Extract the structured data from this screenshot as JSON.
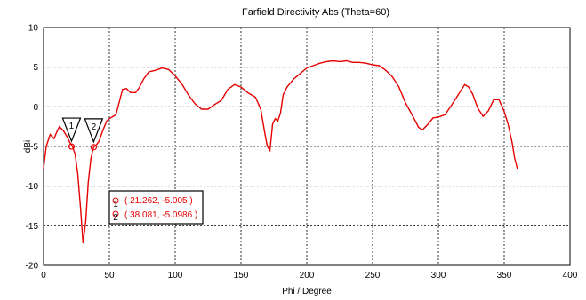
{
  "chart_data": {
    "type": "line",
    "title": "Farfield Directivity Abs (Theta=60)",
    "xlabel": "Phi / Degree",
    "ylabel": "dBi",
    "xlim": [
      0,
      400
    ],
    "ylim": [
      -20,
      10
    ],
    "xticks": [
      "0",
      "50",
      "100",
      "150",
      "200",
      "250",
      "300",
      "350",
      "400"
    ],
    "yticks": [
      "10",
      "5",
      "0",
      "-5",
      "-10",
      "-15",
      "-20"
    ],
    "grid": true,
    "line_color": "#e60000",
    "series": [
      {
        "x": [
          0,
          2,
          5,
          8,
          10,
          12,
          15,
          18,
          20,
          22,
          24,
          26,
          28,
          30,
          32,
          34,
          36,
          38,
          40,
          42,
          45,
          48,
          50,
          55,
          60,
          63,
          66,
          70,
          73,
          76,
          80,
          85,
          90,
          95,
          100,
          105,
          110,
          115,
          120,
          125,
          130,
          135,
          140,
          145,
          150,
          155,
          158,
          161,
          165,
          168,
          170,
          172,
          174,
          176,
          178,
          180,
          182,
          185,
          190,
          195,
          200,
          205,
          210,
          215,
          220,
          225,
          230,
          235,
          240,
          245,
          250,
          255,
          260,
          265,
          270,
          275,
          280,
          285,
          288,
          292,
          296,
          300,
          305,
          310,
          315,
          320,
          323,
          326,
          330,
          334,
          338,
          342,
          346,
          350,
          353,
          356,
          358,
          360
        ],
        "y": [
          -7.8,
          -5.0,
          -3.5,
          -4.0,
          -3.2,
          -2.5,
          -3.0,
          -3.8,
          -4.5,
          -5.0,
          -6.0,
          -8.5,
          -12.5,
          -17.2,
          -14.5,
          -9.5,
          -6.5,
          -5.1,
          -4.8,
          -4.4,
          -3.0,
          -1.8,
          -1.5,
          -1.0,
          2.2,
          2.3,
          1.8,
          1.8,
          2.5,
          3.5,
          4.4,
          4.6,
          4.9,
          4.7,
          3.9,
          2.9,
          1.5,
          0.4,
          -0.3,
          -0.3,
          0.3,
          0.8,
          2.2,
          2.8,
          2.5,
          1.8,
          1.5,
          1.2,
          -0.3,
          -3.2,
          -5.0,
          -5.5,
          -2.2,
          -1.5,
          -1.8,
          -0.8,
          1.5,
          2.5,
          3.5,
          4.2,
          4.9,
          5.2,
          5.5,
          5.7,
          5.8,
          5.7,
          5.8,
          5.6,
          5.6,
          5.5,
          5.3,
          5.2,
          4.6,
          3.8,
          2.5,
          0.5,
          -1.0,
          -2.6,
          -2.9,
          -2.2,
          -1.4,
          -1.3,
          -1.0,
          0.2,
          1.5,
          2.8,
          2.5,
          1.6,
          -0.2,
          -1.2,
          -0.5,
          0.9,
          0.9,
          -0.6,
          -2.2,
          -4.5,
          -6.5,
          -7.8
        ]
      }
    ],
    "markers": [
      {
        "id": "1",
        "x": 21.262,
        "y": -5.005
      },
      {
        "id": "2",
        "x": 38.081,
        "y": -5.0986
      }
    ],
    "legend_labels": [
      "( 21.262, -5.005 )",
      "( 38.081, -5.0986 )"
    ],
    "legend_ids": [
      "1",
      "2"
    ]
  }
}
